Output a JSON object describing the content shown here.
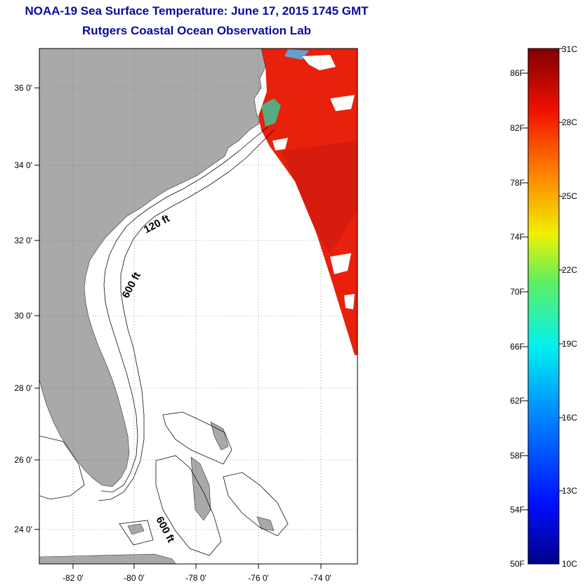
{
  "header": {
    "title": "NOAA-19 Sea Surface Temperature:  June 17, 2015 1745 GMT",
    "subtitle": "Rutgers Coastal Ocean Observation Lab"
  },
  "map": {
    "lon_labels": [
      "-82 0'",
      "-80 0'",
      "-78 0'",
      "-76 0'",
      "-74 0'"
    ],
    "lat_labels": [
      "36 0'",
      "34 0'",
      "32 0'",
      "30 0'",
      "28 0'",
      "26 0'",
      "24 0'"
    ],
    "contour_labels": [
      "120 ft",
      "600 ft",
      "600 ft"
    ],
    "colors": {
      "land": "#a9a9a9",
      "ocean_nodata": "#ffffff",
      "sst_warm": "#e8200c"
    }
  },
  "colorbar": {
    "fahrenheit_labels": [
      "86F",
      "82F",
      "78F",
      "74F",
      "70F",
      "66F",
      "62F",
      "58F",
      "54F",
      "50F"
    ],
    "celsius_labels": [
      "31C",
      "28C",
      "25C",
      "22C",
      "19C",
      "16C",
      "13C",
      "10C"
    ]
  }
}
